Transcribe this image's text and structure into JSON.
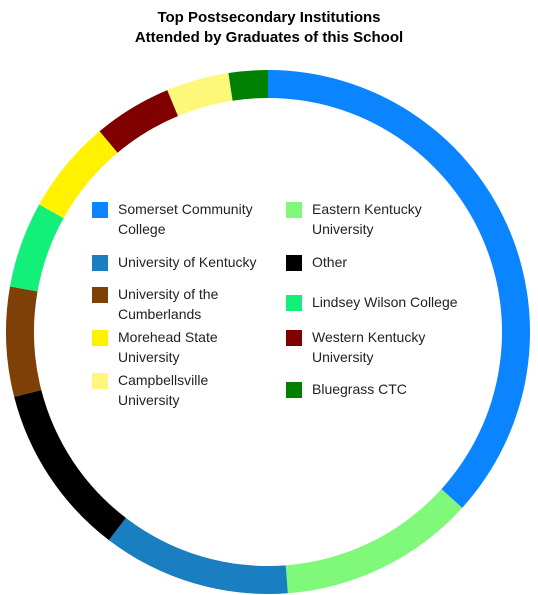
{
  "chart_data": {
    "type": "pie",
    "title_lines": [
      "Top Postsecondary Institutions",
      "Attended by Graduates of this School"
    ],
    "categories": [
      "Somerset Community College",
      "Eastern Kentucky University",
      "University of Kentucky",
      "Other",
      "University of the Cumberlands",
      "Lindsey Wilson College",
      "Morehead State University",
      "Western Kentucky University",
      "Campbellsville University",
      "Bluegrass CTC"
    ],
    "values": [
      38,
      12.5,
      12,
      11,
      7,
      5.5,
      6,
      5,
      4,
      2.5
    ],
    "colors": [
      "#0a84ff",
      "#80f97a",
      "#1a7fc0",
      "#000000",
      "#7f4007",
      "#12f07a",
      "#fff200",
      "#800000",
      "#fff77a",
      "#008000"
    ],
    "legend_placement": "inside",
    "start_angle_deg": 0,
    "direction": "clockwise"
  }
}
